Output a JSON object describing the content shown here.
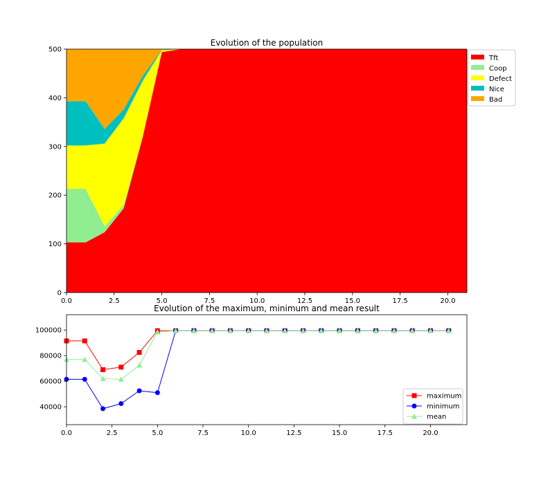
{
  "chart_data": [
    {
      "type": "area",
      "stacked": true,
      "title": "Evolution of the population",
      "xlabel": "",
      "ylabel": "",
      "xlim": [
        0,
        21
      ],
      "ylim": [
        0,
        500
      ],
      "x_ticks": [
        "0.0",
        "2.5",
        "5.0",
        "7.5",
        "10.0",
        "12.5",
        "15.0",
        "17.5",
        "20.0"
      ],
      "y_ticks": [
        "0",
        "100",
        "200",
        "300",
        "400",
        "500"
      ],
      "x": [
        0,
        1,
        2,
        3,
        4,
        5,
        6,
        7,
        8,
        9,
        10,
        11,
        12,
        13,
        14,
        15,
        16,
        17,
        18,
        19,
        20,
        21
      ],
      "series": [
        {
          "name": "Tft",
          "color": "#ff0000",
          "values": [
            103,
            103,
            124,
            173,
            320,
            494,
            500,
            500,
            500,
            500,
            500,
            500,
            500,
            500,
            500,
            500,
            500,
            500,
            500,
            500,
            500,
            500
          ]
        },
        {
          "name": "Coop",
          "color": "#90ee90",
          "values": [
            110,
            110,
            12,
            7,
            0,
            0,
            0,
            0,
            0,
            0,
            0,
            0,
            0,
            0,
            0,
            0,
            0,
            0,
            0,
            0,
            0,
            0
          ]
        },
        {
          "name": "Defect",
          "color": "#ffff00",
          "values": [
            89,
            89,
            170,
            178,
            115,
            4,
            0,
            0,
            0,
            0,
            0,
            0,
            0,
            0,
            0,
            0,
            0,
            0,
            0,
            0,
            0,
            0
          ]
        },
        {
          "name": "Nice",
          "color": "#00bfbf",
          "values": [
            91,
            91,
            30,
            18,
            10,
            1,
            0,
            0,
            0,
            0,
            0,
            0,
            0,
            0,
            0,
            0,
            0,
            0,
            0,
            0,
            0,
            0
          ]
        },
        {
          "name": "Bad",
          "color": "#ffa500",
          "values": [
            107,
            107,
            164,
            124,
            55,
            1,
            0,
            0,
            0,
            0,
            0,
            0,
            0,
            0,
            0,
            0,
            0,
            0,
            0,
            0,
            0,
            0
          ]
        }
      ],
      "legend": "upper-right-outside"
    },
    {
      "type": "line",
      "title": "Evolution of the maximum, minimum and mean result",
      "xlabel": "",
      "ylabel": "",
      "xlim": [
        0,
        22
      ],
      "ylim": [
        26000,
        112000
      ],
      "x_ticks": [
        "0.0",
        "2.5",
        "5.0",
        "7.5",
        "10.0",
        "12.5",
        "15.0",
        "17.5",
        "20.0"
      ],
      "y_ticks": [
        "40000",
        "60000",
        "80000",
        "100000"
      ],
      "x": [
        0,
        1,
        2,
        3,
        4,
        5,
        6,
        7,
        8,
        9,
        10,
        11,
        12,
        13,
        14,
        15,
        16,
        17,
        18,
        19,
        20,
        21
      ],
      "series": [
        {
          "name": "maximum",
          "color": "#ff0000",
          "marker": "square",
          "values": [
            91500,
            91500,
            69000,
            71000,
            82500,
            99500,
            99500,
            99500,
            99500,
            99500,
            99500,
            99500,
            99500,
            99500,
            99500,
            99500,
            99500,
            99500,
            99500,
            99500,
            99500,
            99500
          ]
        },
        {
          "name": "minimum",
          "color": "#0000ff",
          "marker": "circle",
          "values": [
            61500,
            61500,
            38500,
            42500,
            52500,
            51000,
            99500,
            99500,
            99500,
            99500,
            99500,
            99500,
            99500,
            99500,
            99500,
            99500,
            99500,
            99500,
            99500,
            99500,
            99500,
            99500
          ]
        },
        {
          "name": "mean",
          "color": "#90ee90",
          "marker": "triangle",
          "values": [
            77000,
            77000,
            62000,
            61500,
            72500,
            98500,
            99500,
            99500,
            99500,
            99500,
            99500,
            99500,
            99500,
            99500,
            99500,
            99500,
            99500,
            99500,
            99500,
            99500,
            99500,
            99500
          ]
        }
      ],
      "legend": "lower-right"
    }
  ]
}
